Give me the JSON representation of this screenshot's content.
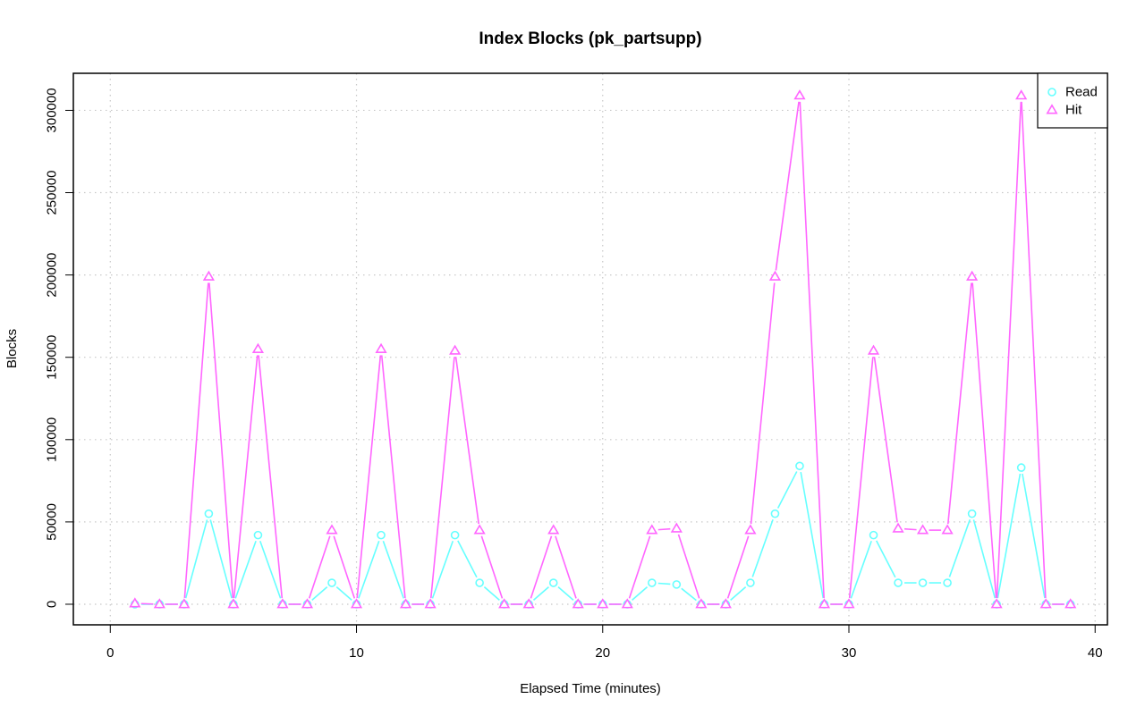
{
  "chart_data": {
    "type": "line",
    "title": "Index Blocks (pk_partsupp)",
    "xlabel": "Elapsed Time (minutes)",
    "ylabel": "Blocks",
    "xlim": [
      -1.5,
      40.5
    ],
    "ylim": [
      -12500,
      322500
    ],
    "xticks": [
      0,
      10,
      20,
      30,
      40
    ],
    "yticks": [
      0,
      50000,
      100000,
      150000,
      200000,
      250000,
      300000
    ],
    "grid": true,
    "legend_position": "top-right",
    "x": [
      1,
      2,
      3,
      4,
      5,
      6,
      7,
      8,
      9,
      10,
      11,
      12,
      13,
      14,
      15,
      16,
      17,
      18,
      19,
      20,
      21,
      22,
      23,
      24,
      25,
      26,
      27,
      28,
      29,
      30,
      31,
      32,
      33,
      34,
      35,
      36,
      37,
      38,
      39
    ],
    "series": [
      {
        "name": "Read",
        "color": "#66ffff",
        "marker": "circle",
        "values": [
          0,
          0,
          0,
          55000,
          0,
          42000,
          0,
          0,
          13000,
          0,
          42000,
          0,
          0,
          42000,
          13000,
          0,
          0,
          13000,
          0,
          0,
          0,
          13000,
          12000,
          0,
          0,
          13000,
          55000,
          84000,
          0,
          0,
          42000,
          13000,
          13000,
          13000,
          55000,
          0,
          83000,
          0,
          0
        ]
      },
      {
        "name": "Hit",
        "color": "#ff66ff",
        "marker": "triangle",
        "values": [
          500,
          0,
          0,
          199000,
          0,
          155000,
          0,
          0,
          45000,
          0,
          155000,
          0,
          0,
          154000,
          45000,
          0,
          0,
          45000,
          0,
          0,
          0,
          45000,
          46000,
          0,
          0,
          45000,
          199000,
          309000,
          0,
          0,
          154000,
          46000,
          45000,
          45000,
          199000,
          0,
          309000,
          0,
          0
        ]
      }
    ]
  }
}
